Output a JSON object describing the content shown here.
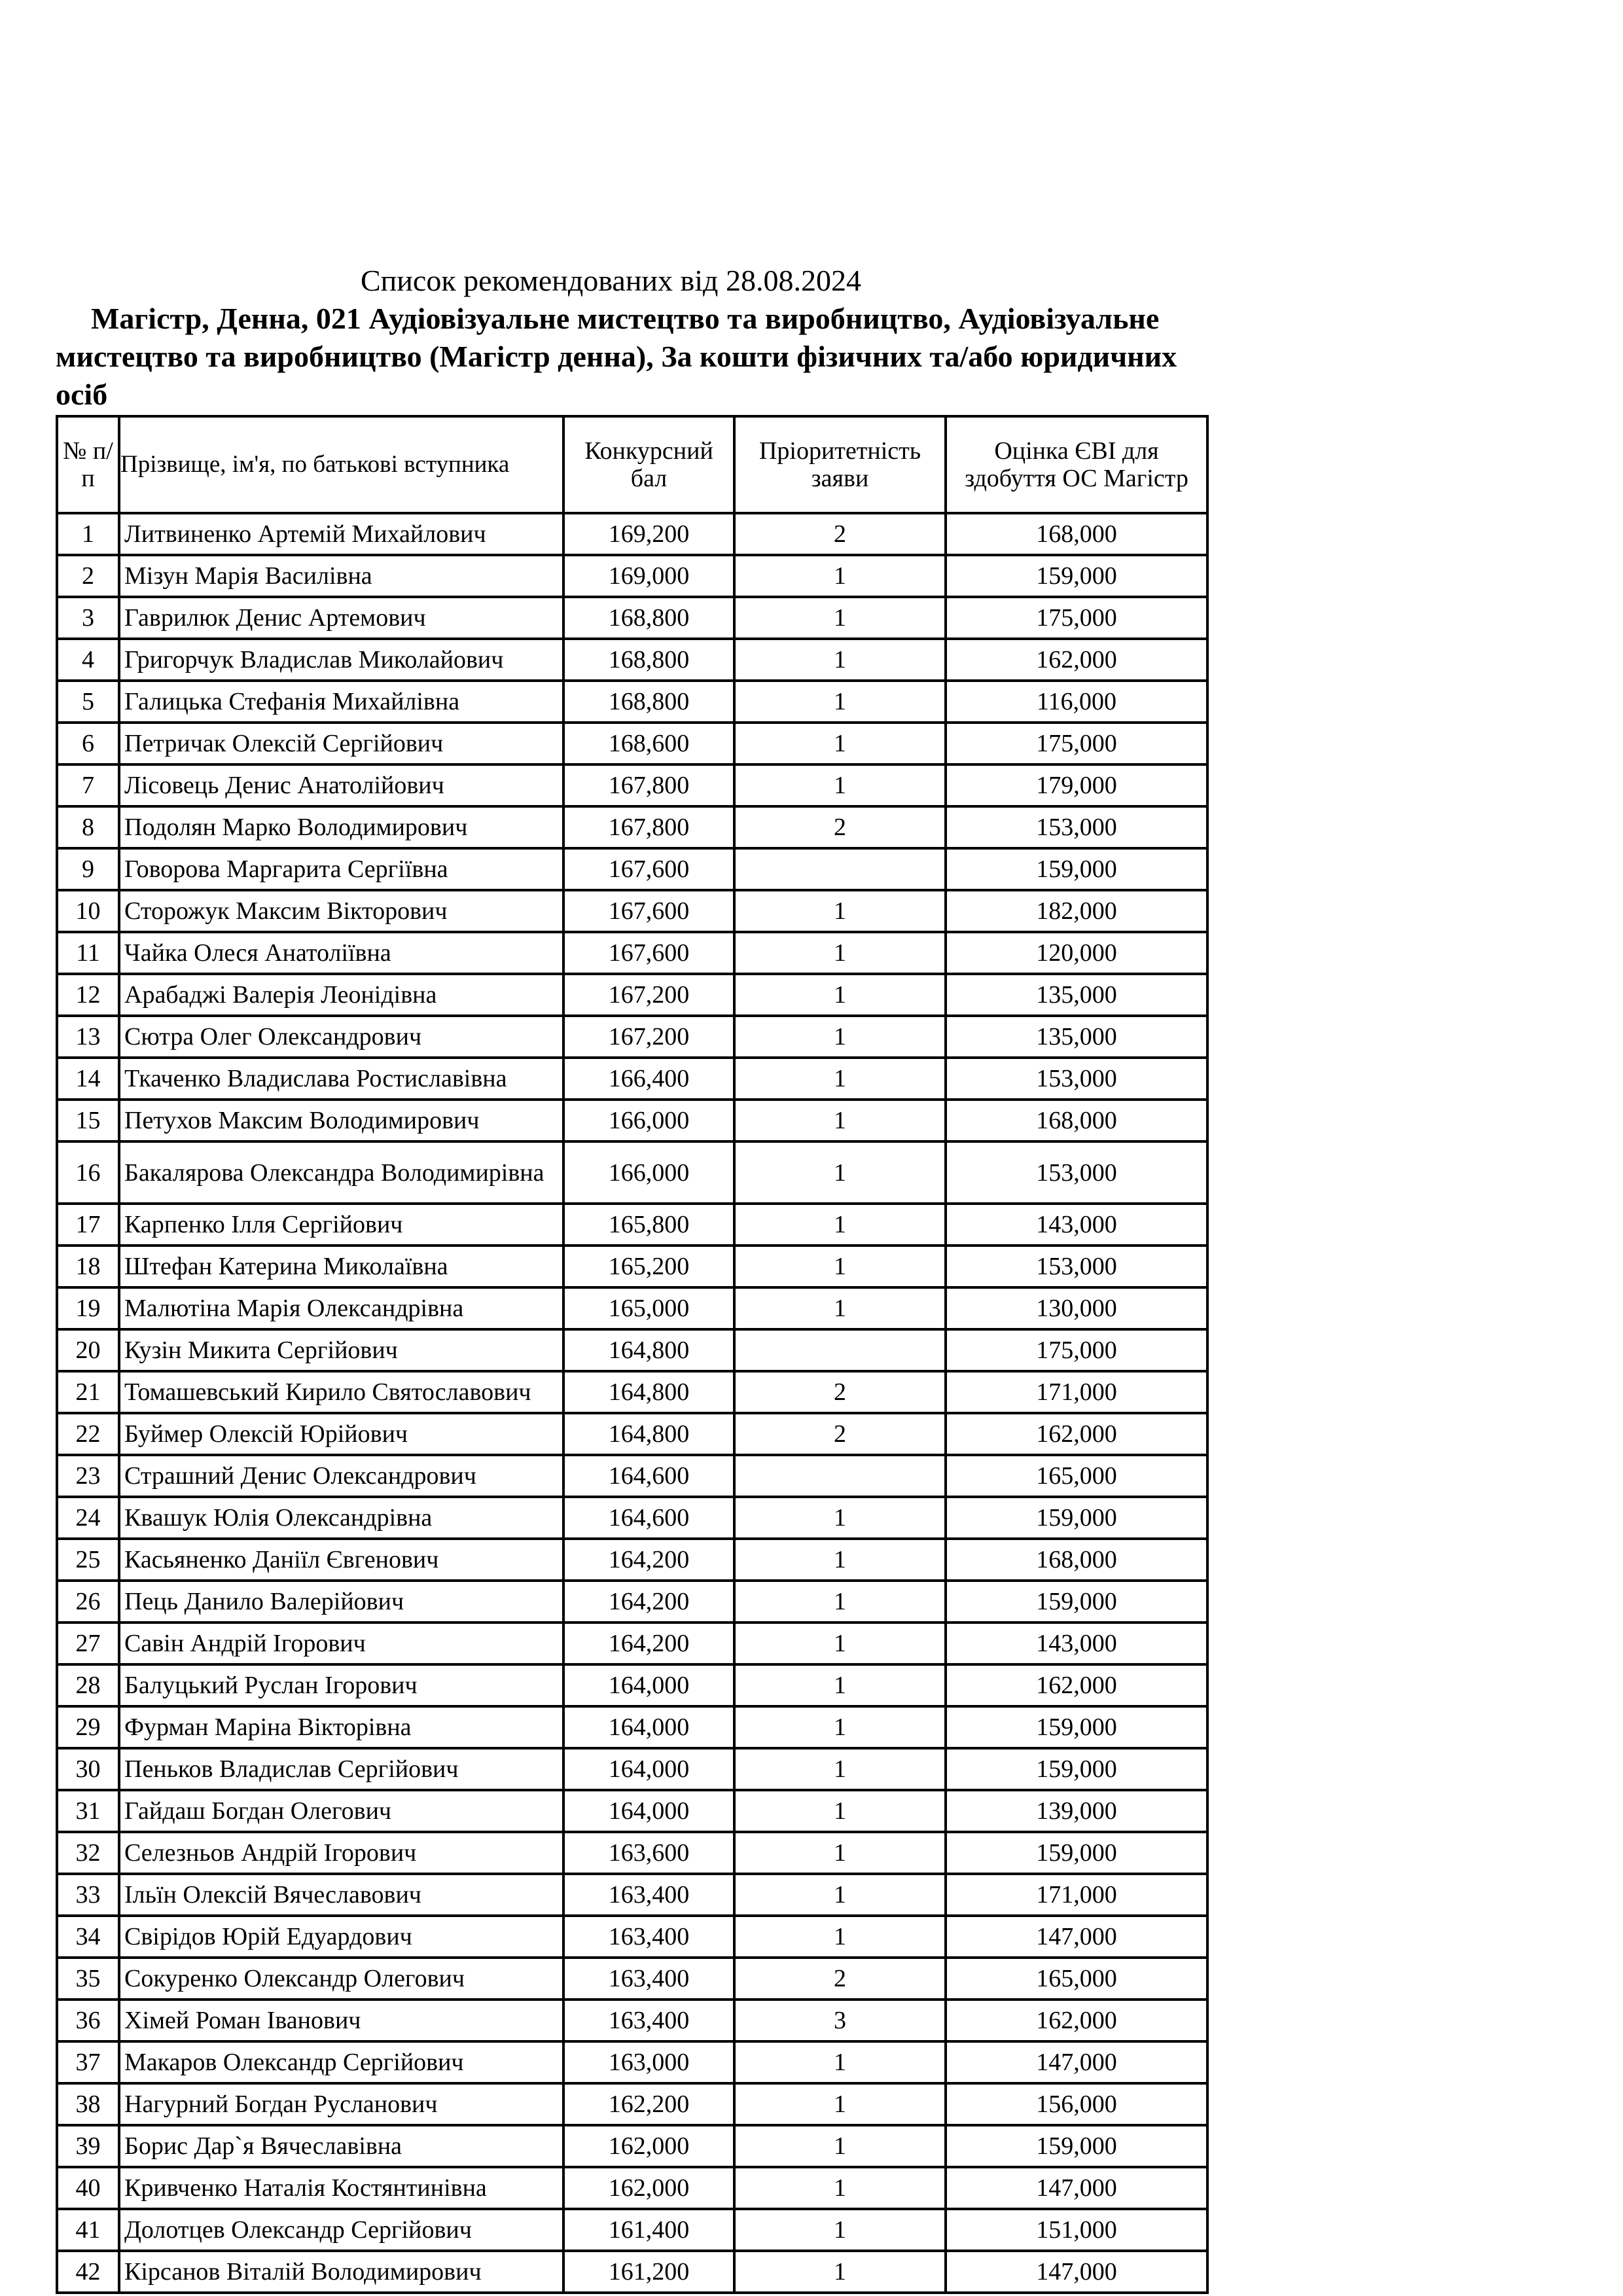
{
  "document": {
    "title": "Список рекомендованих від 28.08.2024",
    "subtitle": "Магістр, Денна, 021 Аудіовізуальне мистецтво та виробництво, Аудіовізуальне мистецтво та виробництво (Магістр денна), За кошти фізичних та/або юридичних осіб"
  },
  "table": {
    "headers": [
      "№ п/п",
      "Прізвище, ім'я, по батькові вступника",
      "Конкурсний бал",
      "Пріоритетність заяви",
      "Оцінка ЄВІ для здобуття ОС Магістр"
    ],
    "rows": [
      [
        "1",
        "Литвиненко Артемій Михайлович",
        "169,200",
        "2",
        "168,000"
      ],
      [
        "2",
        "Мізун Марія Василівна",
        "169,000",
        "1",
        "159,000"
      ],
      [
        "3",
        "Гаврилюк Денис Артемович",
        "168,800",
        "1",
        "175,000"
      ],
      [
        "4",
        "Григорчук Владислав Миколайович",
        "168,800",
        "1",
        "162,000"
      ],
      [
        "5",
        "Галицька Стефанія Михайлівна",
        "168,800",
        "1",
        "116,000"
      ],
      [
        "6",
        "Петричак Олексій Сергійович",
        "168,600",
        "1",
        "175,000"
      ],
      [
        "7",
        "Лісовець Денис Анатолійович",
        "167,800",
        "1",
        "179,000"
      ],
      [
        "8",
        "Подолян Марко Володимирович",
        "167,800",
        "2",
        "153,000"
      ],
      [
        "9",
        "Говорова Маргарита Сергіївна",
        "167,600",
        "",
        "159,000"
      ],
      [
        "10",
        "Сторожук Максим Вікторович",
        "167,600",
        "1",
        "182,000"
      ],
      [
        "11",
        "Чайка Олеся Анатоліївна",
        "167,600",
        "1",
        "120,000"
      ],
      [
        "12",
        "Арабаджі Валерія Леонідівна",
        "167,200",
        "1",
        "135,000"
      ],
      [
        "13",
        "Сютра Олег Олександрович",
        "167,200",
        "1",
        "135,000"
      ],
      [
        "14",
        "Ткаченко Владислава Ростиславівна",
        "166,400",
        "1",
        "153,000"
      ],
      [
        "15",
        "Петухов Максим Володимирович",
        "166,000",
        "1",
        "168,000"
      ],
      [
        "16",
        "Бакалярова Олександра Володимирівна",
        "166,000",
        "1",
        "153,000"
      ],
      [
        "17",
        "Карпенко Ілля Сергійович",
        "165,800",
        "1",
        "143,000"
      ],
      [
        "18",
        "Штефан Катерина Миколаївна",
        "165,200",
        "1",
        "153,000"
      ],
      [
        "19",
        "Малютіна Марія Олександрівна",
        "165,000",
        "1",
        "130,000"
      ],
      [
        "20",
        "Кузін Микита Сергійович",
        "164,800",
        "",
        "175,000"
      ],
      [
        "21",
        "Томашевський Кирило Святославович",
        "164,800",
        "2",
        "171,000"
      ],
      [
        "22",
        "Буймер Олексій Юрійович",
        "164,800",
        "2",
        "162,000"
      ],
      [
        "23",
        "Страшний Денис Олександрович",
        "164,600",
        "",
        "165,000"
      ],
      [
        "24",
        "Квашук Юлія Олександрівна",
        "164,600",
        "1",
        "159,000"
      ],
      [
        "25",
        "Касьяненко Даніїл Євгенович",
        "164,200",
        "1",
        "168,000"
      ],
      [
        "26",
        "Пець Данило Валерійович",
        "164,200",
        "1",
        "159,000"
      ],
      [
        "27",
        "Савін Андрій Ігорович",
        "164,200",
        "1",
        "143,000"
      ],
      [
        "28",
        "Балуцький Руслан Ігорович",
        "164,000",
        "1",
        "162,000"
      ],
      [
        "29",
        "Фурман Маріна Вікторівна",
        "164,000",
        "1",
        "159,000"
      ],
      [
        "30",
        "Пеньков Владислав Сергійович",
        "164,000",
        "1",
        "159,000"
      ],
      [
        "31",
        "Гайдаш Богдан Олегович",
        "164,000",
        "1",
        "139,000"
      ],
      [
        "32",
        "Селезньов Андрій Ігорович",
        "163,600",
        "1",
        "159,000"
      ],
      [
        "33",
        "Ільїн Олексій Вячеславович",
        "163,400",
        "1",
        "171,000"
      ],
      [
        "34",
        "Свірідов Юрій Едуардович",
        "163,400",
        "1",
        "147,000"
      ],
      [
        "35",
        "Сокуренко Олександр Олегович",
        "163,400",
        "2",
        "165,000"
      ],
      [
        "36",
        "Хімей Роман Іванович",
        "163,400",
        "3",
        "162,000"
      ],
      [
        "37",
        "Макаров Олександр Сергійович",
        "163,000",
        "1",
        "147,000"
      ],
      [
        "38",
        "Нагурний Богдан Русланович",
        "162,200",
        "1",
        "156,000"
      ],
      [
        "39",
        "Борис Дар`я Вячеславівна",
        "162,000",
        "1",
        "159,000"
      ],
      [
        "40",
        "Кривченко Наталія Костянтинівна",
        "162,000",
        "1",
        "147,000"
      ],
      [
        "41",
        "Долотцев Олександр Сергійович",
        "161,400",
        "1",
        "151,000"
      ],
      [
        "42",
        "Кірсанов Віталій Володимирович",
        "161,200",
        "1",
        "147,000"
      ]
    ]
  }
}
